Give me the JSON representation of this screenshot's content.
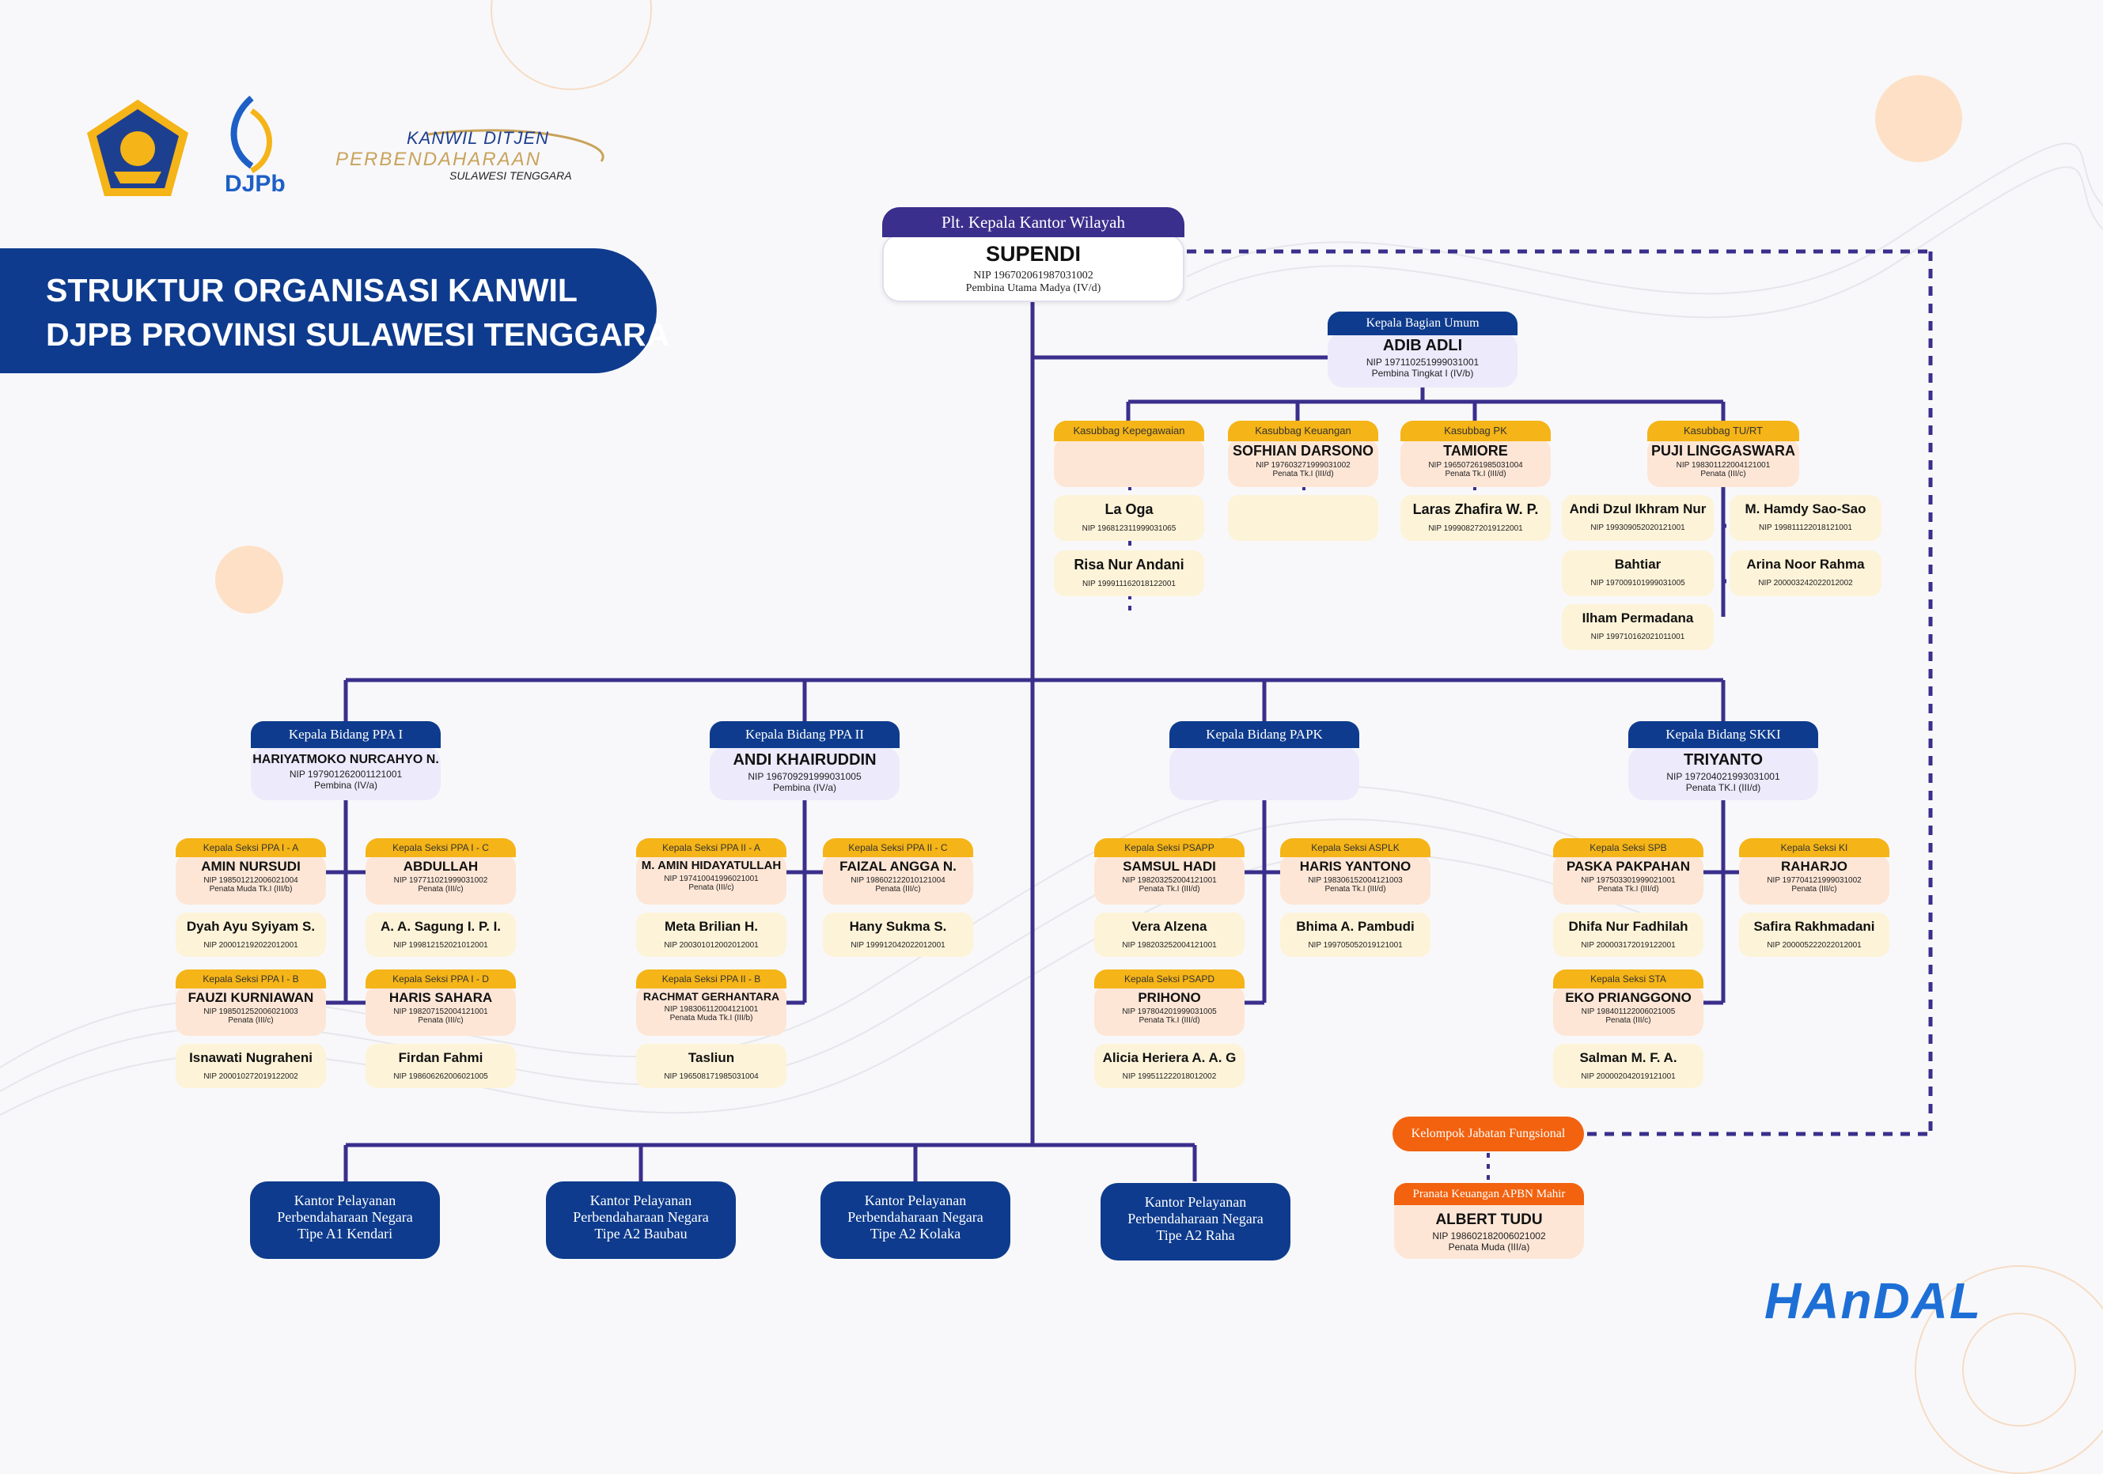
{
  "header": {
    "logo_org": {
      "line1": "KANWIL DITJEN",
      "line2": "PERBENDAHARAAN",
      "line3": "SULAWESI TENGGARA"
    },
    "djpb_text": "DJPb",
    "title_line1": "STRUKTUR ORGANISASI KANWIL",
    "title_line2": "DJPB PROVINSI SULAWESI TENGGARA"
  },
  "kakanwil": {
    "title": "Plt. Kepala Kantor Wilayah",
    "name": "SUPENDI",
    "nip": "NIP 196702061987031002",
    "rank": "Pembina Utama Madya (IV/d)"
  },
  "umum": {
    "title": "Kepala Bagian Umum",
    "name": "ADIB ADLI",
    "nip": "NIP 197110251999031001",
    "rank": "Pembina Tingkat I (IV/b)",
    "kepegawaian": {
      "title": "Kasubbag Kepegawaian",
      "staff1_name": "La Oga",
      "staff1_nip": "NIP 196812311999031065",
      "staff2_name": "Risa Nur Andani",
      "staff2_nip": "NIP 199911162018122001"
    },
    "keuangan": {
      "title": "Kasubbag Keuangan",
      "name": "SOFHIAN DARSONO",
      "nip": "NIP 197603271999031002",
      "rank": "Penata Tk.I (III/d)"
    },
    "pk": {
      "title": "Kasubbag PK",
      "name": "TAMIORE",
      "nip": "NIP 196507261985031004",
      "rank": "Penata Tk.I (III/d)",
      "staff1_name": "Laras Zhafira W. P.",
      "staff1_nip": "NIP 199908272019122001"
    },
    "turt": {
      "title": "Kasubbag TU/RT",
      "name": "PUJI LINGGASWARA",
      "nip": "NIP 198301122004121001",
      "rank": "Penata (III/c)",
      "staff": [
        {
          "name": "Andi Dzul Ikhram Nur",
          "nip": "NIP 199309052020121001"
        },
        {
          "name": "M. Hamdy Sao-Sao",
          "nip": "NIP 199811122018121001"
        },
        {
          "name": "Bahtiar",
          "nip": "NIP 197009101999031005"
        },
        {
          "name": "Arina Noor Rahma",
          "nip": "NIP 200003242022012002"
        },
        {
          "name": "Ilham Permadana",
          "nip": "NIP 199710162021011001"
        }
      ]
    }
  },
  "bidang": [
    {
      "title": "Kepala Bidang PPA I",
      "name": "HARIYATMOKO NURCAHYO N.",
      "nip": "NIP 197901262001121001",
      "rank": "Pembina (IV/a)",
      "seksi": [
        {
          "title": "Kepala Seksi PPA I - A",
          "name": "AMIN NURSUDI",
          "nip": "NIP 198501212006021004",
          "rank": "Penata Muda Tk.I (III/b)",
          "staff_name": "Dyah Ayu Syiyam S.",
          "staff_nip": "NIP 200012192022012001"
        },
        {
          "title": "Kepala Seksi PPA I - C",
          "name": "ABDULLAH",
          "nip": "NIP 197711021999031002",
          "rank": "Penata (III/c)",
          "staff_name": "A. A. Sagung I. P. I.",
          "staff_nip": "NIP 199812152021012001"
        },
        {
          "title": "Kepala Seksi PPA I - B",
          "name": "FAUZI KURNIAWAN",
          "nip": "NIP 198501252006021003",
          "rank": "Penata (III/c)",
          "staff_name": "Isnawati Nugraheni",
          "staff_nip": "NIP 200010272019122002"
        },
        {
          "title": "Kepala Seksi PPA I - D",
          "name": "HARIS SAHARA",
          "nip": "NIP 198207152004121001",
          "rank": "Penata (III/c)",
          "staff_name": "Firdan Fahmi",
          "staff_nip": "NIP 198606262006021005"
        }
      ]
    },
    {
      "title": "Kepala Bidang PPA II",
      "name": "ANDI KHAIRUDDIN",
      "nip": "NIP 196709291999031005",
      "rank": "Pembina (IV/a)",
      "seksi": [
        {
          "title": "Kepala Seksi PPA II - A",
          "name": "M. AMIN HIDAYATULLAH",
          "nip": "NIP 197410041996021001",
          "rank": "Penata (III/c)",
          "staff_name": "Meta Brilian H.",
          "staff_nip": "NIP 200301012002012001"
        },
        {
          "title": "Kepala Seksi PPA II - C",
          "name": "FAIZAL ANGGA N.",
          "nip": "NIP 198602122010121004",
          "rank": "Penata (III/c)",
          "staff_name": "Hany Sukma S.",
          "staff_nip": "NIP 199912042022012001"
        },
        {
          "title": "Kepala Seksi PPA II - B",
          "name": "RACHMAT GERHANTARA",
          "nip": "NIP 198306112004121001",
          "rank": "Penata Muda Tk.I (III/b)",
          "staff_name": "Tasliun",
          "staff_nip": "NIP 196508171985031004"
        }
      ]
    },
    {
      "title": "Kepala Bidang PAPK",
      "name": "",
      "nip": "",
      "rank": "",
      "seksi": [
        {
          "title": "Kepala Seksi PSAPP",
          "name": "SAMSUL HADI",
          "nip": "NIP 198203252004121001",
          "rank": "Penata Tk.I (III/d)",
          "staff_name": "Vera Alzena",
          "staff_nip": "NIP 198203252004121001"
        },
        {
          "title": "Kepala Seksi ASPLK",
          "name": "HARIS YANTONO",
          "nip": "NIP 198306152004121003",
          "rank": "Penata Tk.I (III/d)",
          "staff_name": "Bhima A. Pambudi",
          "staff_nip": "NIP 199705052019121001"
        },
        {
          "title": "Kepala Seksi PSAPD",
          "name": "PRIHONO",
          "nip": "NIP 197804201999031005",
          "rank": "Penata Tk.I (III/d)",
          "staff_name": "Alicia Heriera A. A. G",
          "staff_nip": "NIP 199511222018012002"
        }
      ]
    },
    {
      "title": "Kepala Bidang SKKI",
      "name": "TRIYANTO",
      "nip": "NIP 197204021993031001",
      "rank": "Penata TK.I (III/d)",
      "seksi": [
        {
          "title": "Kepala Seksi SPB",
          "name": "PASKA PAKPAHAN",
          "nip": "NIP 197503301999021001",
          "rank": "Penata Tk.I (III/d)",
          "staff_name": "Dhifa Nur Fadhilah",
          "staff_nip": "NIP 200003172019122001"
        },
        {
          "title": "Kepala Seksi KI",
          "name": "RAHARJO",
          "nip": "NIP 197704121999031002",
          "rank": "Penata (III/c)",
          "staff_name": "Safira Rakhmadani",
          "staff_nip": "NIP 200005222022012001"
        },
        {
          "title": "Kepala Seksi STA",
          "name": "EKO PRIANGGONO",
          "nip": "NIP 198401122006021005",
          "rank": "Penata (III/c)",
          "staff_name": "Salman M. F. A.",
          "staff_nip": "NIP 200002042019121001"
        }
      ]
    }
  ],
  "offices": [
    {
      "line1": "Kantor Pelayanan",
      "line2": "Perbendaharaan Negara",
      "line3": "Tipe A1 Kendari"
    },
    {
      "line1": "Kantor Pelayanan",
      "line2": "Perbendaharaan Negara",
      "line3": "Tipe A2 Baubau"
    },
    {
      "line1": "Kantor Pelayanan",
      "line2": "Perbendaharaan Negara",
      "line3": "Tipe A2 Kolaka"
    },
    {
      "line1": "Kantor Pelayanan",
      "line2": "Perbendaharaan Negara",
      "line3": "Tipe A2 Raha"
    }
  ],
  "jabfung": {
    "group_title": "Kelompok Jabatan Fungsional",
    "title": "Pranata Keuangan APBN Mahir",
    "name": "ALBERT TUDU",
    "nip": "NIP 198602182006021002",
    "rank": "Penata Muda (III/a)"
  },
  "footer": {
    "brand": "HAnDAL"
  },
  "colors": {
    "navy": "#0e3b8d",
    "purple": "#3a2f8c",
    "gold": "#f5b417",
    "orange": "#f2620f",
    "peach": "#fde6d6",
    "cream": "#fdf3d8",
    "lavender": "#eceafb"
  }
}
